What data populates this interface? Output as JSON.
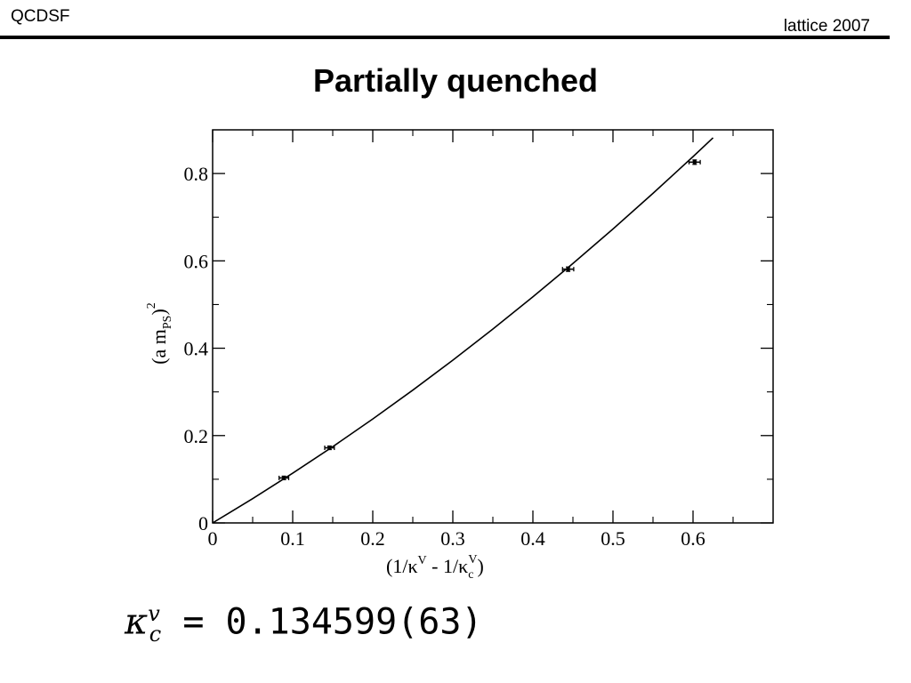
{
  "header": {
    "left_text": "QCDSF",
    "right_text": "lattice 2007"
  },
  "slide": {
    "title": "Partially quenched"
  },
  "result": {
    "symbol": "κ",
    "superscript": "v",
    "subscript": "c",
    "value_text": " = 0.134599(63)"
  },
  "chart_data": {
    "type": "scatter",
    "title": "",
    "xlabel": {
      "main_1": "(1/κ",
      "sup_1": "V",
      "main_2": " - 1/κ",
      "sub_2": "c",
      "sup_2": "V",
      "main_3": ")"
    },
    "ylabel": {
      "main_1": "(a m",
      "sub_1": "PS",
      "main_2": ")",
      "sup_2": "2"
    },
    "xlim": [
      0,
      0.7
    ],
    "ylim": [
      0,
      0.9
    ],
    "x_ticks": [
      0,
      0.1,
      0.2,
      0.3,
      0.4,
      0.5,
      0.6
    ],
    "x_tick_labels": [
      "0",
      "0.1",
      "0.2",
      "0.3",
      "0.4",
      "0.5",
      "0.6"
    ],
    "y_ticks": [
      0,
      0.2,
      0.4,
      0.6,
      0.8
    ],
    "y_tick_labels": [
      "0",
      "0.2",
      "0.4",
      "0.6",
      "0.8"
    ],
    "grid": false,
    "series": [
      {
        "points": [
          {
            "x": 0.089,
            "y": 0.103,
            "xerr": 0.006,
            "yerr": 0.004
          },
          {
            "x": 0.146,
            "y": 0.172,
            "xerr": 0.006,
            "yerr": 0.004
          },
          {
            "x": 0.444,
            "y": 0.581,
            "xerr": 0.007,
            "yerr": 0.005
          },
          {
            "x": 0.602,
            "y": 0.826,
            "xerr": 0.007,
            "yerr": 0.005
          }
        ]
      }
    ],
    "fit": {
      "x": [
        0,
        0.05,
        0.1,
        0.15,
        0.2,
        0.25,
        0.3,
        0.35,
        0.4,
        0.45,
        0.5,
        0.55,
        0.6,
        0.625
      ],
      "y": [
        0,
        0.0556,
        0.1138,
        0.1746,
        0.238,
        0.304,
        0.3726,
        0.4438,
        0.5176,
        0.594,
        0.673,
        0.7546,
        0.8388,
        0.8819
      ]
    }
  }
}
